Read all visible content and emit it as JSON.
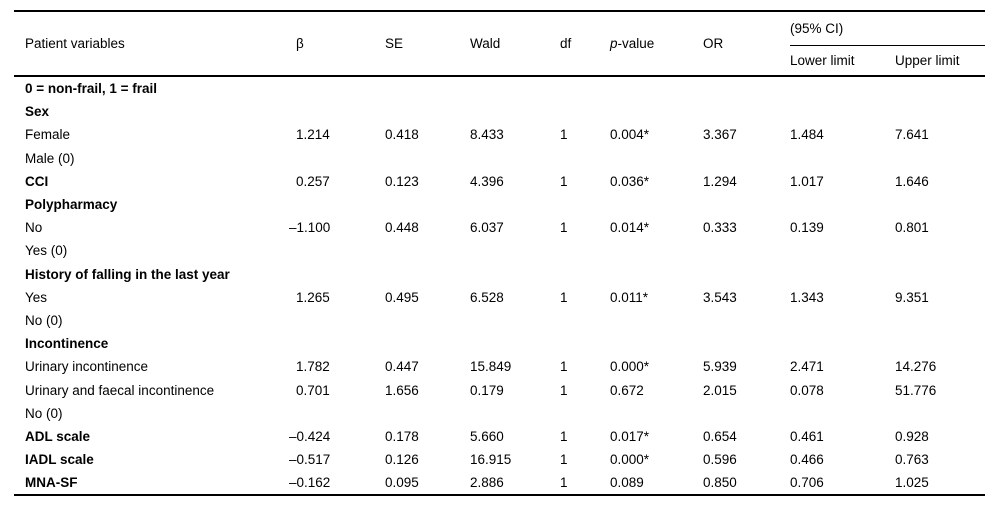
{
  "table": {
    "header": {
      "patient_variables": "Patient variables",
      "beta": "β",
      "se": "SE",
      "wald": "Wald",
      "df": "df",
      "p_italic": "p",
      "p_rest": "-value",
      "or": "OR",
      "ci_label": "(95% CI)",
      "ci_lower": "Lower limit",
      "ci_upper": "Upper limit"
    },
    "value_keys": [
      "beta",
      "se",
      "wald",
      "df",
      "p-value",
      "or",
      "lower-limit",
      "upper-limit"
    ],
    "rows": [
      {
        "label": "0 = non-frail, 1 = frail",
        "bold": true,
        "values": [
          "",
          "",
          "",
          "",
          "",
          "",
          "",
          ""
        ]
      },
      {
        "label": "Sex",
        "bold": true,
        "values": [
          "",
          "",
          "",
          "",
          "",
          "",
          "",
          ""
        ]
      },
      {
        "label": "Female",
        "bold": false,
        "values": [
          "1.214",
          "0.418",
          "8.433",
          "1",
          "0.004*",
          "3.367",
          "1.484",
          "7.641"
        ]
      },
      {
        "label": "Male (0)",
        "bold": false,
        "values": [
          "",
          "",
          "",
          "",
          "",
          "",
          "",
          ""
        ]
      },
      {
        "label": "CCI",
        "bold": true,
        "values": [
          "0.257",
          "0.123",
          "4.396",
          "1",
          "0.036*",
          "1.294",
          "1.017",
          "1.646"
        ]
      },
      {
        "label": "Polypharmacy",
        "bold": true,
        "values": [
          "",
          "",
          "",
          "",
          "",
          "",
          "",
          ""
        ]
      },
      {
        "label": "No",
        "bold": false,
        "values": [
          "–1.100",
          "0.448",
          "6.037",
          "1",
          "0.014*",
          "0.333",
          "0.139",
          "0.801"
        ]
      },
      {
        "label": "Yes (0)",
        "bold": false,
        "values": [
          "",
          "",
          "",
          "",
          "",
          "",
          "",
          ""
        ]
      },
      {
        "label": "History of falling in the last year",
        "bold": true,
        "values": [
          "",
          "",
          "",
          "",
          "",
          "",
          "",
          ""
        ]
      },
      {
        "label": "Yes",
        "bold": false,
        "values": [
          "1.265",
          "0.495",
          "6.528",
          "1",
          "0.011*",
          "3.543",
          "1.343",
          "9.351"
        ]
      },
      {
        "label": "No (0)",
        "bold": false,
        "values": [
          "",
          "",
          "",
          "",
          "",
          "",
          "",
          ""
        ]
      },
      {
        "label": "Incontinence",
        "bold": true,
        "values": [
          "",
          "",
          "",
          "",
          "",
          "",
          "",
          ""
        ]
      },
      {
        "label": "Urinary incontinence",
        "bold": false,
        "values": [
          "1.782",
          "0.447",
          "15.849",
          "1",
          "0.000*",
          "5.939",
          "2.471",
          "14.276"
        ]
      },
      {
        "label": "Urinary and faecal incontinence",
        "bold": false,
        "values": [
          "0.701",
          "1.656",
          "0.179",
          "1",
          "0.672",
          "2.015",
          "0.078",
          "51.776"
        ]
      },
      {
        "label": "No (0)",
        "bold": false,
        "values": [
          "",
          "",
          "",
          "",
          "",
          "",
          "",
          ""
        ]
      },
      {
        "label": "ADL scale",
        "bold": true,
        "values": [
          "–0.424",
          "0.178",
          "5.660",
          "1",
          "0.017*",
          "0.654",
          "0.461",
          "0.928"
        ]
      },
      {
        "label": "IADL scale",
        "bold": true,
        "values": [
          "–0.517",
          "0.126",
          "16.915",
          "1",
          "0.000*",
          "0.596",
          "0.466",
          "0.763"
        ]
      },
      {
        "label": "MNA-SF",
        "bold": true,
        "values": [
          "–0.162",
          "0.095",
          "2.886",
          "1",
          "0.089",
          "0.850",
          "0.706",
          "1.025"
        ]
      }
    ]
  },
  "colors": {
    "text": "#000000",
    "rule": "#000000",
    "background": "#ffffff"
  }
}
